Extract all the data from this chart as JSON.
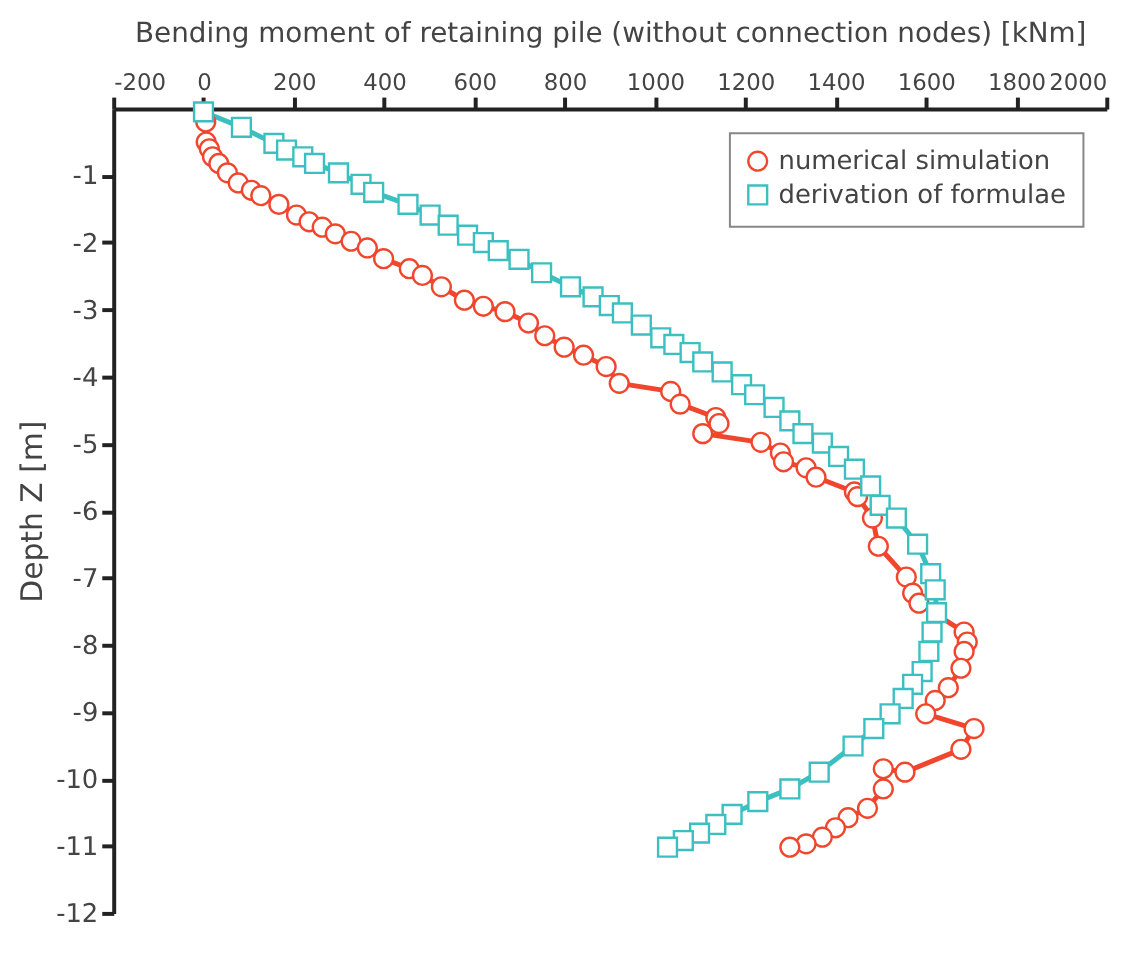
{
  "chart_data": {
    "type": "line",
    "xlabel": "Bending moment of retaining pile (without connection nodes) [kNm]",
    "ylabel": "Depth Z [m]",
    "xlim": [
      -200,
      2000
    ],
    "xticks": [
      -200,
      0,
      200,
      400,
      600,
      800,
      1000,
      1200,
      1400,
      1600,
      1800,
      2000
    ],
    "ylim": [
      -12,
      0
    ],
    "yticks": [
      -12,
      -11,
      -10,
      -9,
      -8,
      -7,
      -6,
      -5,
      -4,
      -3,
      -2,
      -1
    ],
    "grid": false,
    "legend": "top right",
    "line_style": "solid",
    "series": [
      {
        "name": "numerical simulation",
        "color": "#f0462d",
        "marker": "circle",
        "x": [
          5,
          6,
          13,
          20,
          34,
          53,
          77,
          106,
          127,
          167,
          206,
          234,
          263,
          292,
          327,
          363,
          399,
          456,
          485,
          527,
          578,
          620,
          668,
          720,
          756,
          799,
          842,
          892,
          921,
          1035,
          1056,
          1135,
          1142,
          1106,
          1235,
          1278,
          1285,
          1335,
          1357,
          1442,
          1449,
          1482,
          1495,
          1557,
          1571,
          1585,
          1685,
          1692,
          1685,
          1678,
          1650,
          1621,
          1600,
          1707,
          1678,
          1554,
          1506,
          1506,
          1471,
          1428,
          1400,
          1371,
          1335,
          1299
        ],
        "values": [
          -0.2,
          -0.5,
          -0.6,
          -0.72,
          -0.82,
          -0.96,
          -1.11,
          -1.22,
          -1.3,
          -1.43,
          -1.59,
          -1.69,
          -1.77,
          -1.87,
          -1.98,
          -2.08,
          -2.24,
          -2.39,
          -2.49,
          -2.66,
          -2.86,
          -2.95,
          -3.03,
          -3.2,
          -3.39,
          -3.56,
          -3.68,
          -3.85,
          -4.1,
          -4.22,
          -4.41,
          -4.61,
          -4.7,
          -4.85,
          -4.98,
          -5.14,
          -5.27,
          -5.36,
          -5.5,
          -5.72,
          -5.79,
          -6.11,
          -6.53,
          -6.99,
          -7.23,
          -7.38,
          -7.81,
          -7.96,
          -8.1,
          -8.35,
          -8.64,
          -8.83,
          -9.03,
          -9.25,
          -9.56,
          -9.9,
          -9.85,
          -10.15,
          -10.44,
          -10.58,
          -10.73,
          -10.87,
          -10.97,
          -11.02
        ]
      },
      {
        "name": "derivation of formulae",
        "color": "#3cbfc0",
        "marker": "square",
        "x": [
          0,
          84,
          156,
          184,
          220,
          246,
          299,
          349,
          377,
          453,
          502,
          542,
          585,
          620,
          653,
          699,
          749,
          813,
          863,
          899,
          928,
          970,
          1013,
          1042,
          1078,
          1106,
          1149,
          1192,
          1221,
          1264,
          1299,
          1328,
          1371,
          1407,
          1442,
          1478,
          1499,
          1535,
          1582,
          1611,
          1621,
          1624,
          1614,
          1607,
          1592,
          1571,
          1550,
          1521,
          1485,
          1439,
          1364,
          1299,
          1228,
          1171,
          1135,
          1099,
          1063,
          1028
        ],
        "values": [
          -0.05,
          -0.28,
          -0.52,
          -0.62,
          -0.72,
          -0.82,
          -0.96,
          -1.13,
          -1.25,
          -1.43,
          -1.59,
          -1.74,
          -1.89,
          -2.0,
          -2.12,
          -2.25,
          -2.45,
          -2.66,
          -2.81,
          -2.94,
          -3.05,
          -3.23,
          -3.42,
          -3.52,
          -3.64,
          -3.78,
          -3.93,
          -4.12,
          -4.27,
          -4.46,
          -4.66,
          -4.85,
          -4.99,
          -5.19,
          -5.38,
          -5.63,
          -5.92,
          -6.11,
          -6.5,
          -6.94,
          -7.18,
          -7.52,
          -7.81,
          -8.1,
          -8.4,
          -8.59,
          -8.8,
          -9.03,
          -9.25,
          -9.51,
          -9.9,
          -10.15,
          -10.34,
          -10.53,
          -10.68,
          -10.81,
          -10.92,
          -11.02
        ]
      }
    ]
  }
}
